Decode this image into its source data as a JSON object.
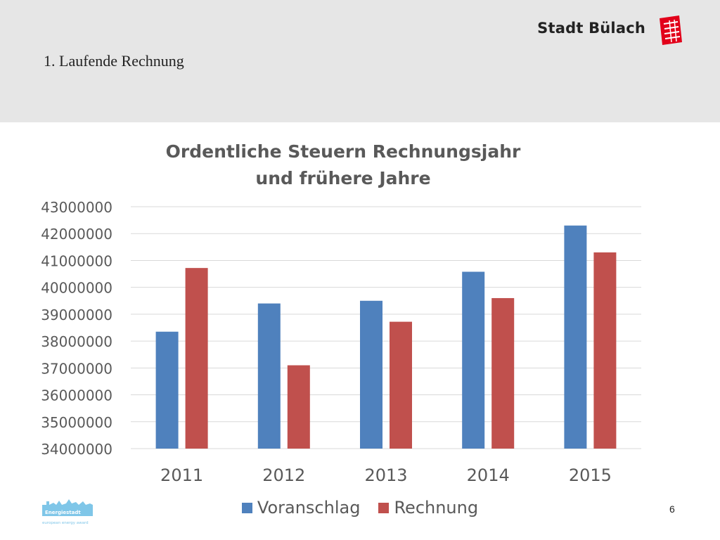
{
  "slide": {
    "title": "1. Laufende Rechnung",
    "brand_name": "Stadt Bülach",
    "page_number": "6"
  },
  "footer_logo": {
    "name": "Energiestadt",
    "tagline": "european energy award"
  },
  "colors": {
    "header_bg": "#e6e6e6",
    "voranschlag": "#4f81bd",
    "rechnung": "#c0504d",
    "gridline": "#d9d9d9",
    "axis_text": "#595959",
    "brand_red": "#e2001a"
  },
  "chart_data": {
    "type": "bar",
    "title": "Ordentliche Steuern Rechnungsjahr und frühere Jahre",
    "title_lines": [
      "Ordentliche Steuern Rechnungsjahr",
      "und frühere Jahre"
    ],
    "categories": [
      "2011",
      "2012",
      "2013",
      "2014",
      "2015"
    ],
    "series": [
      {
        "name": "Voranschlag",
        "values": [
          38350000,
          39400000,
          39500000,
          40580000,
          42300000
        ]
      },
      {
        "name": "Rechnung",
        "values": [
          40720000,
          37100000,
          38720000,
          39600000,
          41300000
        ]
      }
    ],
    "ylim": [
      34000000,
      43000000
    ],
    "yticks": [
      "34000000",
      "35000000",
      "36000000",
      "37000000",
      "38000000",
      "39000000",
      "40000000",
      "41000000",
      "42000000",
      "43000000"
    ],
    "xlabel": "",
    "ylabel": "",
    "grid": true,
    "legend_position": "bottom"
  }
}
